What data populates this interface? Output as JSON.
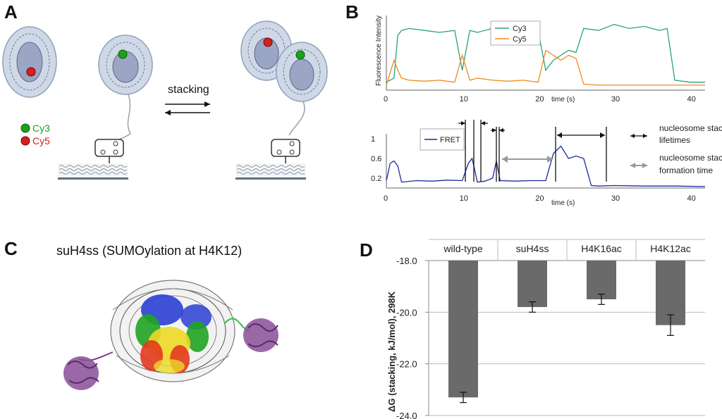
{
  "panels": {
    "a": {
      "letter": "A",
      "stacking_label": "stacking",
      "legend": [
        {
          "label": "Cy3",
          "color": "#1aa31a"
        },
        {
          "label": "Cy5",
          "color": "#d42020"
        }
      ]
    },
    "b": {
      "letter": "B",
      "top_ylabel": "Fluorescence Intensity",
      "xlabel": "time (s)",
      "bottom_legend": "FRET",
      "annotations": [
        "nucleosome stack",
        "lifetimes",
        "nucleosome stack",
        "formation time"
      ]
    },
    "c": {
      "letter": "C",
      "title": "suH4ss (SUMOylation at H4K12)"
    },
    "d": {
      "letter": "D"
    }
  },
  "chart_data": [
    {
      "type": "line",
      "panel": "B-top",
      "ylabel": "Fluorescence Intensity",
      "xlabel": "time (s)",
      "xlim": [
        0,
        42
      ],
      "xticks": [
        0,
        10,
        20,
        30,
        40
      ],
      "legend_position": "top-center",
      "series": [
        {
          "name": "Cy3",
          "color": "#2aa37a",
          "x": [
            0,
            1,
            1.5,
            2,
            3,
            5,
            7,
            9,
            10,
            11,
            12,
            14,
            16,
            18,
            20,
            21,
            22,
            23,
            24,
            25,
            26,
            28,
            30,
            32,
            34,
            36,
            37,
            38,
            40,
            42
          ],
          "y": [
            0.08,
            0.12,
            0.55,
            0.6,
            0.62,
            0.6,
            0.58,
            0.6,
            0.2,
            0.6,
            0.58,
            0.62,
            0.6,
            0.58,
            0.6,
            0.2,
            0.3,
            0.35,
            0.4,
            0.38,
            0.62,
            0.6,
            0.66,
            0.62,
            0.64,
            0.6,
            0.62,
            0.1,
            0.08,
            0.08
          ]
        },
        {
          "name": "Cy5",
          "color": "#f08a1c",
          "x": [
            0,
            1,
            1.5,
            2,
            3,
            5,
            7,
            9,
            10,
            11,
            12,
            14,
            16,
            18,
            20,
            21,
            22,
            23,
            24,
            25,
            26,
            28,
            30,
            32,
            34,
            36,
            37,
            38,
            40,
            42
          ],
          "y": [
            0.05,
            0.3,
            0.2,
            0.12,
            0.1,
            0.09,
            0.1,
            0.08,
            0.35,
            0.1,
            0.12,
            0.1,
            0.09,
            0.1,
            0.08,
            0.4,
            0.35,
            0.3,
            0.35,
            0.32,
            0.06,
            0.05,
            0.05,
            0.05,
            0.05,
            0.05,
            0.05,
            0.05,
            0.05,
            0.05
          ]
        }
      ]
    },
    {
      "type": "line",
      "panel": "B-bottom",
      "xlabel": "time (s)",
      "xlim": [
        0,
        42
      ],
      "ylim": [
        0,
        1.1
      ],
      "xticks": [
        0,
        10,
        20,
        30,
        40
      ],
      "yticks": [
        0.2,
        0.6,
        1
      ],
      "legend_position": "top-left",
      "series": [
        {
          "name": "FRET",
          "color": "#1a2a9a",
          "x": [
            0,
            0.5,
            1,
            1.5,
            2,
            4,
            6,
            8,
            10,
            10.8,
            11.3,
            12,
            13,
            14,
            14.5,
            15,
            17,
            19,
            21,
            22,
            23,
            24,
            25,
            26,
            27,
            28,
            30,
            34,
            38,
            42
          ],
          "y": [
            0.15,
            0.5,
            0.55,
            0.45,
            0.12,
            0.15,
            0.14,
            0.16,
            0.15,
            0.5,
            0.6,
            0.12,
            0.14,
            0.2,
            0.55,
            0.15,
            0.14,
            0.15,
            0.15,
            0.7,
            0.85,
            0.6,
            0.65,
            0.6,
            0.05,
            0.04,
            0.05,
            0.04,
            0.04,
            0.03
          ]
        }
      ]
    },
    {
      "type": "bar",
      "panel": "D",
      "categories": [
        "wild-type",
        "suH4ss",
        "H4K16ac",
        "H4K12ac"
      ],
      "values": [
        -23.3,
        -19.8,
        -19.5,
        -20.5
      ],
      "errors": [
        0.2,
        0.2,
        0.2,
        0.4
      ],
      "ylabel": "ΔG (stacking, kJ/mol), 298K",
      "ylim": [
        -24.0,
        -18.0
      ],
      "yticks": [
        -18.0,
        -20.0,
        -22.0,
        -24.0
      ],
      "ytick_labels": [
        "-18.0",
        "-20.0",
        "-22.0",
        "-24.0"
      ],
      "bar_color": "#6a6a6a",
      "grid": true,
      "xaxis_position": "top"
    }
  ]
}
